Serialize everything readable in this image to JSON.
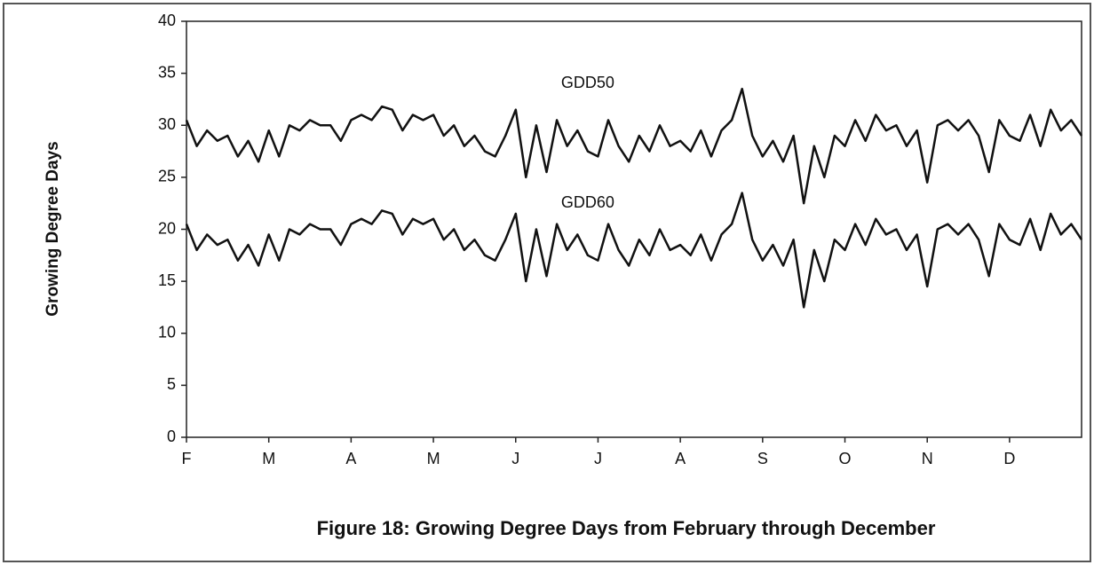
{
  "chart_data": {
    "type": "line",
    "title": "Figure 18: Growing Degree Days  from February through December",
    "y_label": "Growing Degree Days",
    "categories": [
      "F",
      null,
      null,
      null,
      null,
      null,
      null,
      null,
      "M",
      null,
      null,
      null,
      null,
      null,
      null,
      null,
      "A",
      null,
      null,
      null,
      null,
      null,
      null,
      null,
      "M",
      null,
      null,
      null,
      null,
      null,
      null,
      null,
      "J",
      null,
      null,
      null,
      null,
      null,
      null,
      null,
      "J",
      null,
      null,
      null,
      null,
      null,
      null,
      null,
      "A",
      null,
      null,
      null,
      null,
      null,
      null,
      null,
      "S",
      null,
      null,
      null,
      null,
      null,
      null,
      null,
      "O",
      null,
      null,
      null,
      null,
      null,
      null,
      null,
      "N",
      null,
      null,
      null,
      null,
      null,
      null,
      null,
      "D",
      null,
      null,
      null,
      null,
      null,
      null,
      null
    ],
    "series": [
      {
        "name": "GDD50",
        "color": "#111111",
        "values": [
          30.5,
          28,
          29.5,
          28.5,
          29,
          27,
          28.5,
          26.5,
          29.5,
          27,
          30,
          29.5,
          30.5,
          30,
          30,
          28.5,
          30.5,
          31,
          30.5,
          31.8,
          31.5,
          29.5,
          31,
          30.5,
          31,
          29,
          30,
          28,
          29,
          27.5,
          27,
          29,
          31.5,
          25,
          30,
          25.5,
          30.5,
          28,
          29.5,
          27.5,
          27,
          30.5,
          28,
          26.5,
          29,
          27.5,
          30,
          28,
          28.5,
          27.5,
          29.5,
          27,
          29.5,
          30.5,
          33.5,
          29,
          27,
          28.5,
          26.5,
          29,
          22.5,
          28,
          25,
          29,
          28,
          30.5,
          28.5,
          31,
          29.5,
          30,
          28,
          29.5,
          24.5,
          30,
          30.5,
          29.5,
          30.5,
          29,
          25.5,
          30.5,
          29,
          28.5,
          31,
          28,
          31.5,
          29.5,
          30.5,
          29
        ]
      },
      {
        "name": "GDD60",
        "color": "#111111",
        "values": [
          20.5,
          18,
          19.5,
          18.5,
          19,
          17,
          18.5,
          16.5,
          19.5,
          17,
          20,
          19.5,
          20.5,
          20,
          20,
          18.5,
          20.5,
          21,
          20.5,
          21.8,
          21.5,
          19.5,
          21,
          20.5,
          21,
          19,
          20,
          18,
          19,
          17.5,
          17,
          19,
          21.5,
          15,
          20,
          15.5,
          20.5,
          18,
          19.5,
          17.5,
          17,
          20.5,
          18,
          16.5,
          19,
          17.5,
          20,
          18,
          18.5,
          17.5,
          19.5,
          17,
          19.5,
          20.5,
          23.5,
          19,
          17,
          18.5,
          16.5,
          19,
          12.5,
          18,
          15,
          19,
          18,
          20.5,
          18.5,
          21,
          19.5,
          20,
          18,
          19.5,
          14.5,
          20,
          20.5,
          19.5,
          20.5,
          19,
          15.5,
          20.5,
          19,
          18.5,
          21,
          18,
          21.5,
          19.5,
          20.5,
          19
        ]
      }
    ],
    "annotations": [
      {
        "text": "GDD50",
        "x": 39,
        "y": 34
      },
      {
        "text": "GDD60",
        "x": 39,
        "y": 22.5
      }
    ],
    "ylim": [
      0,
      40
    ],
    "yticks": [
      0,
      5,
      10,
      15,
      20,
      25,
      30,
      35,
      40
    ],
    "grid": false
  }
}
